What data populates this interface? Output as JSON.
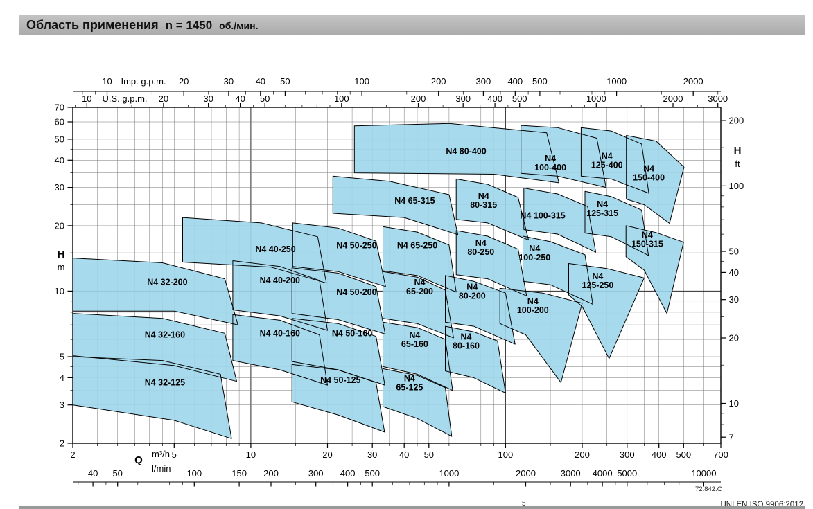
{
  "title_bar": {
    "text": "Область применения",
    "speed": "n = 1450",
    "unit": "об./мин."
  },
  "footer": {
    "code": "72.842.C",
    "standard_fragment": "UNI EN ISO 9906:2012",
    "footnote_fragment": "5"
  },
  "colors": {
    "region_fill": "#9fd7ec",
    "region_stroke": "#000000",
    "grid": "#777777",
    "grid_major": "#2a2a2a",
    "titlebar_bg": "#b5b5b5"
  },
  "chart_data": {
    "type": "area",
    "description": "Pump application range chart, N4 series, log-log scales",
    "x_label": "Q",
    "q_range_m3h": [
      2,
      700
    ],
    "h_range_m": [
      2,
      70
    ],
    "x_axes": [
      {
        "id": "imp_gpm",
        "label": "Imp. g.p.m.",
        "unit_per_m3h": 3.666,
        "position": "top-outer",
        "ticks": [
          10,
          20,
          30,
          40,
          50,
          100,
          200,
          300,
          400,
          500,
          1000,
          2000
        ]
      },
      {
        "id": "us_gpm",
        "label": "U.S. g.p.m.",
        "unit_per_m3h": 4.403,
        "position": "top-inner",
        "ticks": [
          10,
          20,
          30,
          40,
          50,
          100,
          200,
          300,
          400,
          500,
          1000,
          2000,
          3000
        ]
      },
      {
        "id": "m3h",
        "label": "m³/h",
        "unit_per_m3h": 1,
        "position": "bottom-inner",
        "ticks": [
          2,
          5,
          10,
          20,
          30,
          40,
          50,
          100,
          200,
          300,
          400,
          500,
          700
        ]
      },
      {
        "id": "l_min",
        "label": "l/min",
        "unit_per_m3h": 16.667,
        "position": "bottom-outer",
        "ticks": [
          40,
          50,
          100,
          150,
          200,
          300,
          400,
          500,
          1000,
          2000,
          3000,
          4000,
          5000,
          10000
        ]
      }
    ],
    "y_axes": [
      {
        "id": "H_m",
        "label": "H",
        "unit": "m",
        "unit_per_m": 1,
        "position": "left",
        "ticks": [
          2,
          3,
          4,
          5,
          10,
          20,
          30,
          40,
          50,
          60,
          70
        ]
      },
      {
        "id": "H_ft",
        "label": "H",
        "unit": "ft",
        "unit_per_m": 3.2808,
        "position": "right",
        "ticks": [
          7,
          10,
          20,
          30,
          40,
          50,
          100,
          200
        ]
      }
    ],
    "regions": [
      {
        "label": "N4 32-125",
        "two_line": false,
        "label_at": [
          4.6,
          3.8
        ],
        "poly": [
          [
            2,
            5.0
          ],
          [
            4.5,
            4.8
          ],
          [
            7.6,
            4.15
          ],
          [
            8.4,
            2.1
          ],
          [
            5,
            2.55
          ],
          [
            2,
            3.0
          ]
        ]
      },
      {
        "label": "N4 32-160",
        "two_line": false,
        "label_at": [
          4.6,
          6.3
        ],
        "poly": [
          [
            2,
            7.9
          ],
          [
            4.5,
            7.5
          ],
          [
            7.9,
            6.4
          ],
          [
            8.8,
            3.85
          ],
          [
            5,
            4.55
          ],
          [
            2,
            5.05
          ]
        ]
      },
      {
        "label": "N4 32-200",
        "two_line": false,
        "label_at": [
          4.7,
          11.0
        ],
        "poly": [
          [
            2,
            14.2
          ],
          [
            4.5,
            13.5
          ],
          [
            7.9,
            11.4
          ],
          [
            8.9,
            7.0
          ],
          [
            5,
            8.1
          ],
          [
            2,
            8.1
          ]
        ]
      },
      {
        "label": "N4 40-160",
        "two_line": false,
        "label_at": [
          13,
          6.4
        ],
        "poly": [
          [
            8.5,
            7.8
          ],
          [
            13,
            7.35
          ],
          [
            18.6,
            6.3
          ],
          [
            20,
            3.7
          ],
          [
            13,
            4.35
          ],
          [
            8.5,
            4.8
          ]
        ]
      },
      {
        "label": "N4 40-200",
        "two_line": false,
        "label_at": [
          13,
          11.2
        ],
        "poly": [
          [
            8.5,
            13.8
          ],
          [
            13,
            13.0
          ],
          [
            18.6,
            11.2
          ],
          [
            20,
            6.6
          ],
          [
            13,
            7.7
          ],
          [
            8.5,
            8.2
          ]
        ]
      },
      {
        "label": "N4 40-250",
        "two_line": false,
        "label_at": [
          12.5,
          15.6
        ],
        "poly": [
          [
            5.4,
            21.8
          ],
          [
            11,
            20.6
          ],
          [
            18.3,
            17.8
          ],
          [
            19.8,
            10.9
          ],
          [
            12,
            12.9
          ],
          [
            5.4,
            13.6
          ]
        ]
      },
      {
        "label": "N4 50-125",
        "two_line": false,
        "label_at": [
          22.5,
          3.9
        ],
        "poly": [
          [
            14.5,
            4.6
          ],
          [
            22,
            4.35
          ],
          [
            31,
            3.8
          ],
          [
            33.5,
            2.25
          ],
          [
            22,
            2.7
          ],
          [
            14.5,
            3.1
          ]
        ]
      },
      {
        "label": "N4 50-160",
        "two_line": false,
        "label_at": [
          25,
          6.4
        ],
        "poly": [
          [
            14.5,
            7.5
          ],
          [
            22,
            7.1
          ],
          [
            31,
            6.2
          ],
          [
            33.6,
            3.7
          ],
          [
            22,
            4.35
          ],
          [
            14.5,
            4.75
          ]
        ]
      },
      {
        "label": "N4 50-200",
        "two_line": false,
        "label_at": [
          26,
          9.9
        ],
        "poly": [
          [
            14.5,
            12.8
          ],
          [
            22,
            12.1
          ],
          [
            31,
            10.5
          ],
          [
            33.7,
            6.35
          ],
          [
            22,
            7.4
          ],
          [
            14.5,
            7.9
          ]
        ]
      },
      {
        "label": "N4 50-250",
        "two_line": false,
        "label_at": [
          26,
          16.2
        ],
        "poly": [
          [
            14.6,
            20.6
          ],
          [
            22,
            19.5
          ],
          [
            31,
            17.0
          ],
          [
            33.8,
            10.5
          ],
          [
            22,
            12.3
          ],
          [
            14.6,
            13.0
          ]
        ]
      },
      {
        "label": "N4 65-125",
        "two_line": true,
        "label_at": [
          42,
          3.8
        ],
        "poly": [
          [
            33,
            4.4
          ],
          [
            45,
            4.1
          ],
          [
            58,
            3.6
          ],
          [
            61.5,
            2.15
          ],
          [
            45,
            2.6
          ],
          [
            33,
            2.95
          ]
        ]
      },
      {
        "label": "N4 65-160",
        "two_line": true,
        "label_at": [
          44,
          6.0
        ],
        "poly": [
          [
            33,
            7.2
          ],
          [
            45,
            6.8
          ],
          [
            58,
            6.0
          ],
          [
            62,
            3.5
          ],
          [
            45,
            4.15
          ],
          [
            33,
            4.5
          ]
        ]
      },
      {
        "label": "N4 65-200",
        "two_line": true,
        "label_at": [
          46,
          10.5
        ],
        "poly": [
          [
            33,
            12.3
          ],
          [
            45,
            11.6
          ],
          [
            58,
            10.1
          ],
          [
            62.5,
            6.1
          ],
          [
            45,
            7.1
          ],
          [
            33,
            7.5
          ]
        ]
      },
      {
        "label": "N4 65-250",
        "two_line": false,
        "label_at": [
          45,
          16.2
        ],
        "poly": [
          [
            33,
            19.8
          ],
          [
            45,
            18.7
          ],
          [
            60,
            16.3
          ],
          [
            64,
            9.9
          ],
          [
            45,
            11.8
          ],
          [
            33,
            12.4
          ]
        ]
      },
      {
        "label": "N4 65-315",
        "two_line": false,
        "label_at": [
          44,
          26
        ],
        "poly": [
          [
            21,
            33.8
          ],
          [
            35,
            32.0
          ],
          [
            60,
            27.8
          ],
          [
            65,
            18.2
          ],
          [
            40,
            21.8
          ],
          [
            21,
            22.8
          ]
        ]
      },
      {
        "label": "N4 80-160",
        "two_line": true,
        "label_at": [
          70,
          5.9
        ],
        "poly": [
          [
            58,
            6.9
          ],
          [
            75,
            6.5
          ],
          [
            93,
            5.9
          ],
          [
            100,
            3.4
          ],
          [
            75,
            4.0
          ],
          [
            58,
            4.3
          ]
        ]
      },
      {
        "label": "N4 80-200",
        "two_line": true,
        "label_at": [
          74,
          10.0
        ],
        "poly": [
          [
            58,
            11.8
          ],
          [
            75,
            11.1
          ],
          [
            100,
            9.8
          ],
          [
            109,
            5.7
          ],
          [
            75,
            6.9
          ],
          [
            58,
            7.2
          ]
        ]
      },
      {
        "label": "N4 80-250",
        "two_line": true,
        "label_at": [
          80,
          15.9
        ],
        "poly": [
          [
            64,
            19.0
          ],
          [
            85,
            17.9
          ],
          [
            112,
            15.6
          ],
          [
            121,
            9.5
          ],
          [
            85,
            11.4
          ],
          [
            64,
            11.9
          ]
        ]
      },
      {
        "label": "N4 80-315",
        "two_line": true,
        "label_at": [
          82,
          26.2
        ],
        "poly": [
          [
            64,
            32.8
          ],
          [
            85,
            31.0
          ],
          [
            112,
            27.0
          ],
          [
            123,
            17.2
          ],
          [
            85,
            20.6
          ],
          [
            64,
            21.4
          ]
        ]
      },
      {
        "label": "N4 80-400",
        "two_line": false,
        "label_at": [
          70,
          44
        ],
        "poly": [
          [
            25.5,
            57.5
          ],
          [
            60,
            59.0
          ],
          [
            145,
            53.5
          ],
          [
            162,
            31.5
          ],
          [
            90,
            34.5
          ],
          [
            25.5,
            35.0
          ]
        ]
      },
      {
        "label": "N4 100-200",
        "two_line": true,
        "label_at": [
          128,
          8.6
        ],
        "poly": [
          [
            95,
            10.3
          ],
          [
            140,
            9.8
          ],
          [
            200,
            8.8
          ],
          [
            165,
            3.8
          ],
          [
            120,
            6.3
          ],
          [
            95,
            7.1
          ]
        ]
      },
      {
        "label": "N4 100-250",
        "two_line": true,
        "label_at": [
          130,
          15.0
        ],
        "poly": [
          [
            117,
            17.9
          ],
          [
            150,
            16.9
          ],
          [
            205,
            14.7
          ],
          [
            220,
            8.7
          ],
          [
            150,
            10.7
          ],
          [
            117,
            11.1
          ]
        ]
      },
      {
        "label": "N4 100-315",
        "two_line": false,
        "label_at": [
          140,
          22.2
        ],
        "poly": [
          [
            118,
            29.8
          ],
          [
            160,
            28.0
          ],
          [
            210,
            24.5
          ],
          [
            226,
            15.1
          ],
          [
            160,
            18.3
          ],
          [
            118,
            19.2
          ]
        ]
      },
      {
        "label": "N4 100-400",
        "two_line": true,
        "label_at": [
          150,
          39
        ],
        "poly": [
          [
            115,
            57.8
          ],
          [
            160,
            56.5
          ],
          [
            228,
            50.5
          ],
          [
            248,
            30.0
          ],
          [
            160,
            33.8
          ],
          [
            115,
            34.8
          ]
        ]
      },
      {
        "label": "N4 125-250",
        "two_line": true,
        "label_at": [
          230,
          11.2
        ],
        "poly": [
          [
            177,
            13.4
          ],
          [
            250,
            12.7
          ],
          [
            350,
            11.5
          ],
          [
            255,
            4.9
          ],
          [
            200,
            8.5
          ],
          [
            177,
            9.6
          ]
        ]
      },
      {
        "label": "N4 125-315",
        "two_line": true,
        "label_at": [
          240,
          24
        ],
        "poly": [
          [
            205,
            28.8
          ],
          [
            260,
            27.2
          ],
          [
            342,
            23.6
          ],
          [
            364,
            14.6
          ],
          [
            260,
            17.8
          ],
          [
            205,
            18.5
          ]
        ]
      },
      {
        "label": "N4 125-400",
        "two_line": true,
        "label_at": [
          250,
          40
        ],
        "poly": [
          [
            198,
            56.5
          ],
          [
            260,
            54.5
          ],
          [
            342,
            47.5
          ],
          [
            365,
            28.2
          ],
          [
            260,
            32.8
          ],
          [
            198,
            33.8
          ]
        ]
      },
      {
        "label": "N4 150-315",
        "two_line": true,
        "label_at": [
          360,
          17.3
        ],
        "poly": [
          [
            297,
            20.0
          ],
          [
            390,
            18.6
          ],
          [
            500,
            16.8
          ],
          [
            430,
            7.9
          ],
          [
            350,
            12.5
          ],
          [
            297,
            14.4
          ]
        ]
      },
      {
        "label": "N4 150-400",
        "two_line": true,
        "label_at": [
          365,
          35
        ],
        "poly": [
          [
            298,
            52.0
          ],
          [
            390,
            49.0
          ],
          [
            502,
            37.2
          ],
          [
            440,
            20.5
          ],
          [
            350,
            25.0
          ],
          [
            298,
            26.5
          ]
        ]
      }
    ]
  }
}
